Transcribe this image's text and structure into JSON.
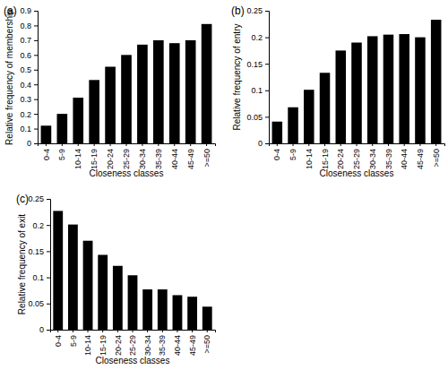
{
  "chart_data": [
    {
      "type": "bar",
      "title": "(a)",
      "x_label": "Closeness classes",
      "y_label": "Relative frequency of membership",
      "categories": [
        "0-4",
        "5-9",
        "10-14",
        "15-19",
        "20-24",
        "25-29",
        "30-34",
        "35-39",
        "40-44",
        "45-49",
        ">=50"
      ],
      "values": [
        0.12,
        0.2,
        0.31,
        0.43,
        0.52,
        0.6,
        0.67,
        0.7,
        0.68,
        0.7,
        0.81
      ],
      "color": "#000000",
      "ylim": [
        0,
        0.9
      ],
      "yticks": [
        0,
        0.1,
        0.2,
        0.3,
        0.4,
        0.5,
        0.6,
        0.7,
        0.8,
        0.9
      ],
      "grid": false
    },
    {
      "type": "bar",
      "title": "(b)",
      "x_label": "Closeness classes",
      "y_label": "Relative frequency of entry",
      "categories": [
        "0-4",
        "5-9",
        "10-14",
        "15-19",
        "20-24",
        "25-29",
        "30-34",
        "35-39",
        "40-44",
        "45-49",
        ">=50"
      ],
      "values": [
        0.041,
        0.068,
        0.101,
        0.133,
        0.175,
        0.19,
        0.202,
        0.205,
        0.206,
        0.2,
        0.233
      ],
      "color": "#000000",
      "ylim": [
        0,
        0.25
      ],
      "yticks": [
        0,
        0.05,
        0.1,
        0.15,
        0.2,
        0.25
      ],
      "grid": false
    },
    {
      "type": "bar",
      "title": "(c)",
      "x_label": "Closeness classes",
      "y_label": "Relative frequency of exit",
      "categories": [
        "0-4",
        "5-9",
        "10-14",
        "15-19",
        "20-24",
        "25-29",
        "30-34",
        "35-39",
        "40-44",
        "45-49",
        ">=50"
      ],
      "values": [
        0.227,
        0.201,
        0.17,
        0.143,
        0.122,
        0.104,
        0.077,
        0.077,
        0.066,
        0.063,
        0.044
      ],
      "color": "#000000",
      "ylim": [
        0,
        0.25
      ],
      "yticks": [
        0,
        0.05,
        0.1,
        0.15,
        0.2,
        0.25
      ],
      "grid": false
    }
  ]
}
